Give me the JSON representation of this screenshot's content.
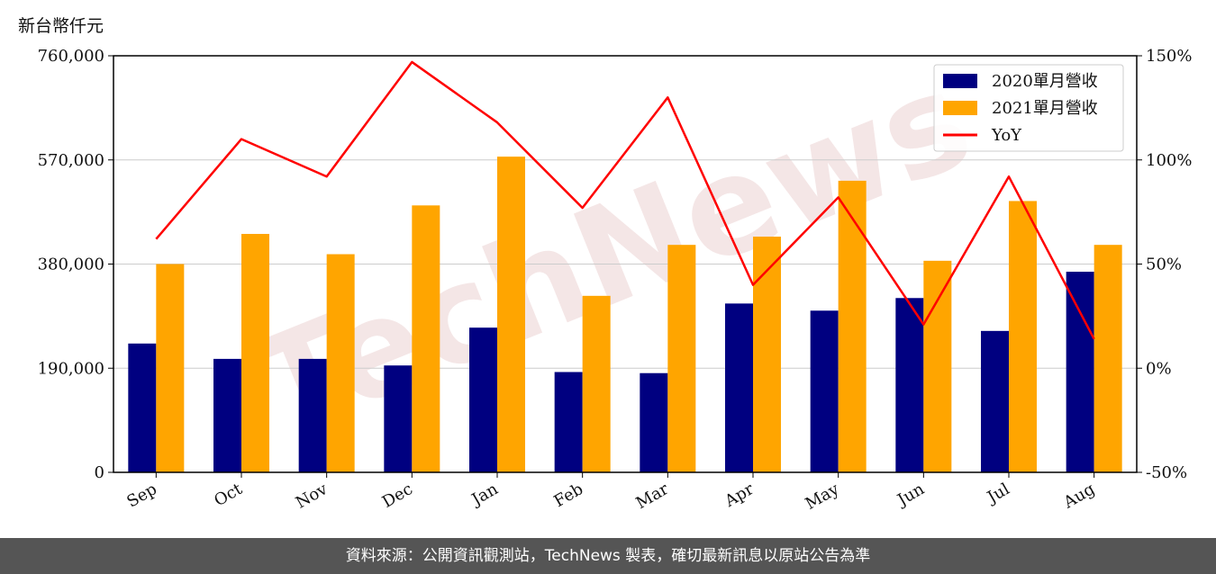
{
  "unit_label": "新台幣仟元",
  "footer_text": "資料來源：公開資訊觀測站，TechNews 製表，確切最新訊息以原站公告為準",
  "watermark": "TechNews",
  "colors": {
    "series_2020": "#000080",
    "series_2021": "#FFA500",
    "yoy": "#FF0000",
    "grid": "#cccccc",
    "footer_bg": "#555555"
  },
  "chart_data": {
    "type": "bar",
    "categories": [
      "Sep",
      "Oct",
      "Nov",
      "Dec",
      "Jan",
      "Feb",
      "Mar",
      "Apr",
      "May",
      "Jun",
      "Jul",
      "Aug"
    ],
    "series": [
      {
        "name": "2020單月營收",
        "type": "bar",
        "axis": "left",
        "values": [
          235000,
          207000,
          207000,
          195000,
          264000,
          183000,
          181000,
          308000,
          295000,
          318000,
          258000,
          366000
        ]
      },
      {
        "name": "2021單月營收",
        "type": "bar",
        "axis": "left",
        "values": [
          380000,
          435000,
          398000,
          487000,
          576000,
          322000,
          415000,
          430000,
          532000,
          386000,
          495000,
          415000
        ]
      },
      {
        "name": "YoY",
        "type": "line",
        "axis": "right",
        "unit": "%",
        "values": [
          62,
          110,
          92,
          147,
          118,
          77,
          130,
          40,
          82,
          21,
          92,
          14
        ]
      }
    ],
    "y_left": {
      "min": 0,
      "max": 760000,
      "ticks": [
        0,
        190000,
        380000,
        570000,
        760000
      ],
      "tick_labels": [
        "0",
        "190,000",
        "380,000",
        "570,000",
        "760,000"
      ]
    },
    "y_right": {
      "min": -50,
      "max": 150,
      "ticks": [
        -50,
        0,
        50,
        100,
        150
      ],
      "tick_labels": [
        "-50%",
        "0%",
        "50%",
        "100%",
        "150%"
      ]
    },
    "grid": true,
    "legend_position": "top-right"
  }
}
